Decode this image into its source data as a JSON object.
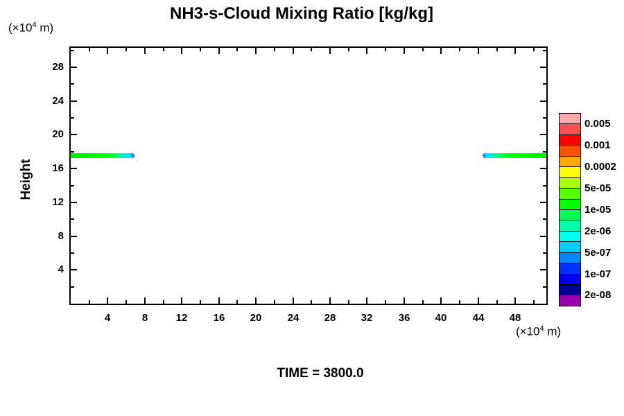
{
  "title": "NH3-s-Cloud Mixing Ratio [kg/kg]",
  "time_label": "TIME = 3800.0",
  "axis_units": {
    "pre": "(×10",
    "sup": "4",
    "post": " m)"
  },
  "y_axis": {
    "label": "Height",
    "major_ticks": [
      4,
      8,
      12,
      16,
      20,
      24,
      28
    ],
    "minor_ticks": [
      2,
      6,
      10,
      14,
      18,
      22,
      26,
      30
    ]
  },
  "x_axis": {
    "major_ticks": [
      4,
      8,
      12,
      16,
      20,
      24,
      28,
      32,
      36,
      40,
      44,
      48
    ],
    "minor_ticks": [
      2,
      6,
      10,
      14,
      18,
      22,
      26,
      30,
      34,
      38,
      42,
      46,
      50
    ]
  },
  "colorbar": {
    "labels": [
      "0.005",
      "0.001",
      "0.0002",
      "5e-05",
      "1e-05",
      "2e-06",
      "5e-07",
      "1e-07",
      "2e-08"
    ],
    "labeled_after_cell": [
      1,
      3,
      5,
      7,
      9,
      11,
      13,
      15,
      17
    ],
    "cell_colors": [
      "#ffaaaa",
      "#ff5050",
      "#ff0000",
      "#ff5000",
      "#ffaa00",
      "#ffff00",
      "#aaff00",
      "#55ff00",
      "#00ff00",
      "#00ff55",
      "#00ffaa",
      "#00ffee",
      "#00ccff",
      "#0088ff",
      "#0033ff",
      "#0000ee",
      "#000099",
      "#9900aa"
    ]
  },
  "chart_data": {
    "type": "heatmap",
    "title": "NH3-s-Cloud Mixing Ratio [kg/kg]",
    "xlabel": "(×10^4 m)",
    "ylabel": "Height",
    "ylabel_unit": "(×10^4 m)",
    "xlim": [
      0,
      51.35
    ],
    "ylim": [
      0,
      30.3
    ],
    "x_ticks": [
      4,
      8,
      12,
      16,
      20,
      24,
      28,
      32,
      36,
      40,
      44,
      48
    ],
    "y_ticks": [
      4,
      8,
      12,
      16,
      20,
      24,
      28
    ],
    "time": "3800.0",
    "grid": false,
    "legend_position": "right-colorbar",
    "colorbar_levels_labeled": [
      "0.005",
      "0.001",
      "0.0002",
      "5e-05",
      "1e-05",
      "2e-06",
      "5e-07",
      "1e-07",
      "2e-08"
    ],
    "bands": [
      {
        "name": "cloud-band-left",
        "x_start": 0,
        "x_end": 6.9,
        "y_center": 17.5,
        "thickness": 0.57,
        "tip_side": "right",
        "core": "#00ee00",
        "body": "#00ff00",
        "mid": "#00ff77",
        "tip": "#00e4ff",
        "fringe": "#2255ff",
        "core_level": "~1e-05 kg/kg",
        "tip_level": "~5e-07 to 1e-07 kg/kg"
      },
      {
        "name": "cloud-band-right",
        "x_start": 44.45,
        "x_end": 51.35,
        "y_center": 17.5,
        "thickness": 0.57,
        "tip_side": "left",
        "core": "#00ee00",
        "body": "#00ff00",
        "mid": "#00ff77",
        "tip": "#00e4ff",
        "fringe": "#2255ff",
        "core_level": "~1e-05 kg/kg",
        "tip_level": "~5e-07 to 1e-07 kg/kg"
      }
    ]
  }
}
